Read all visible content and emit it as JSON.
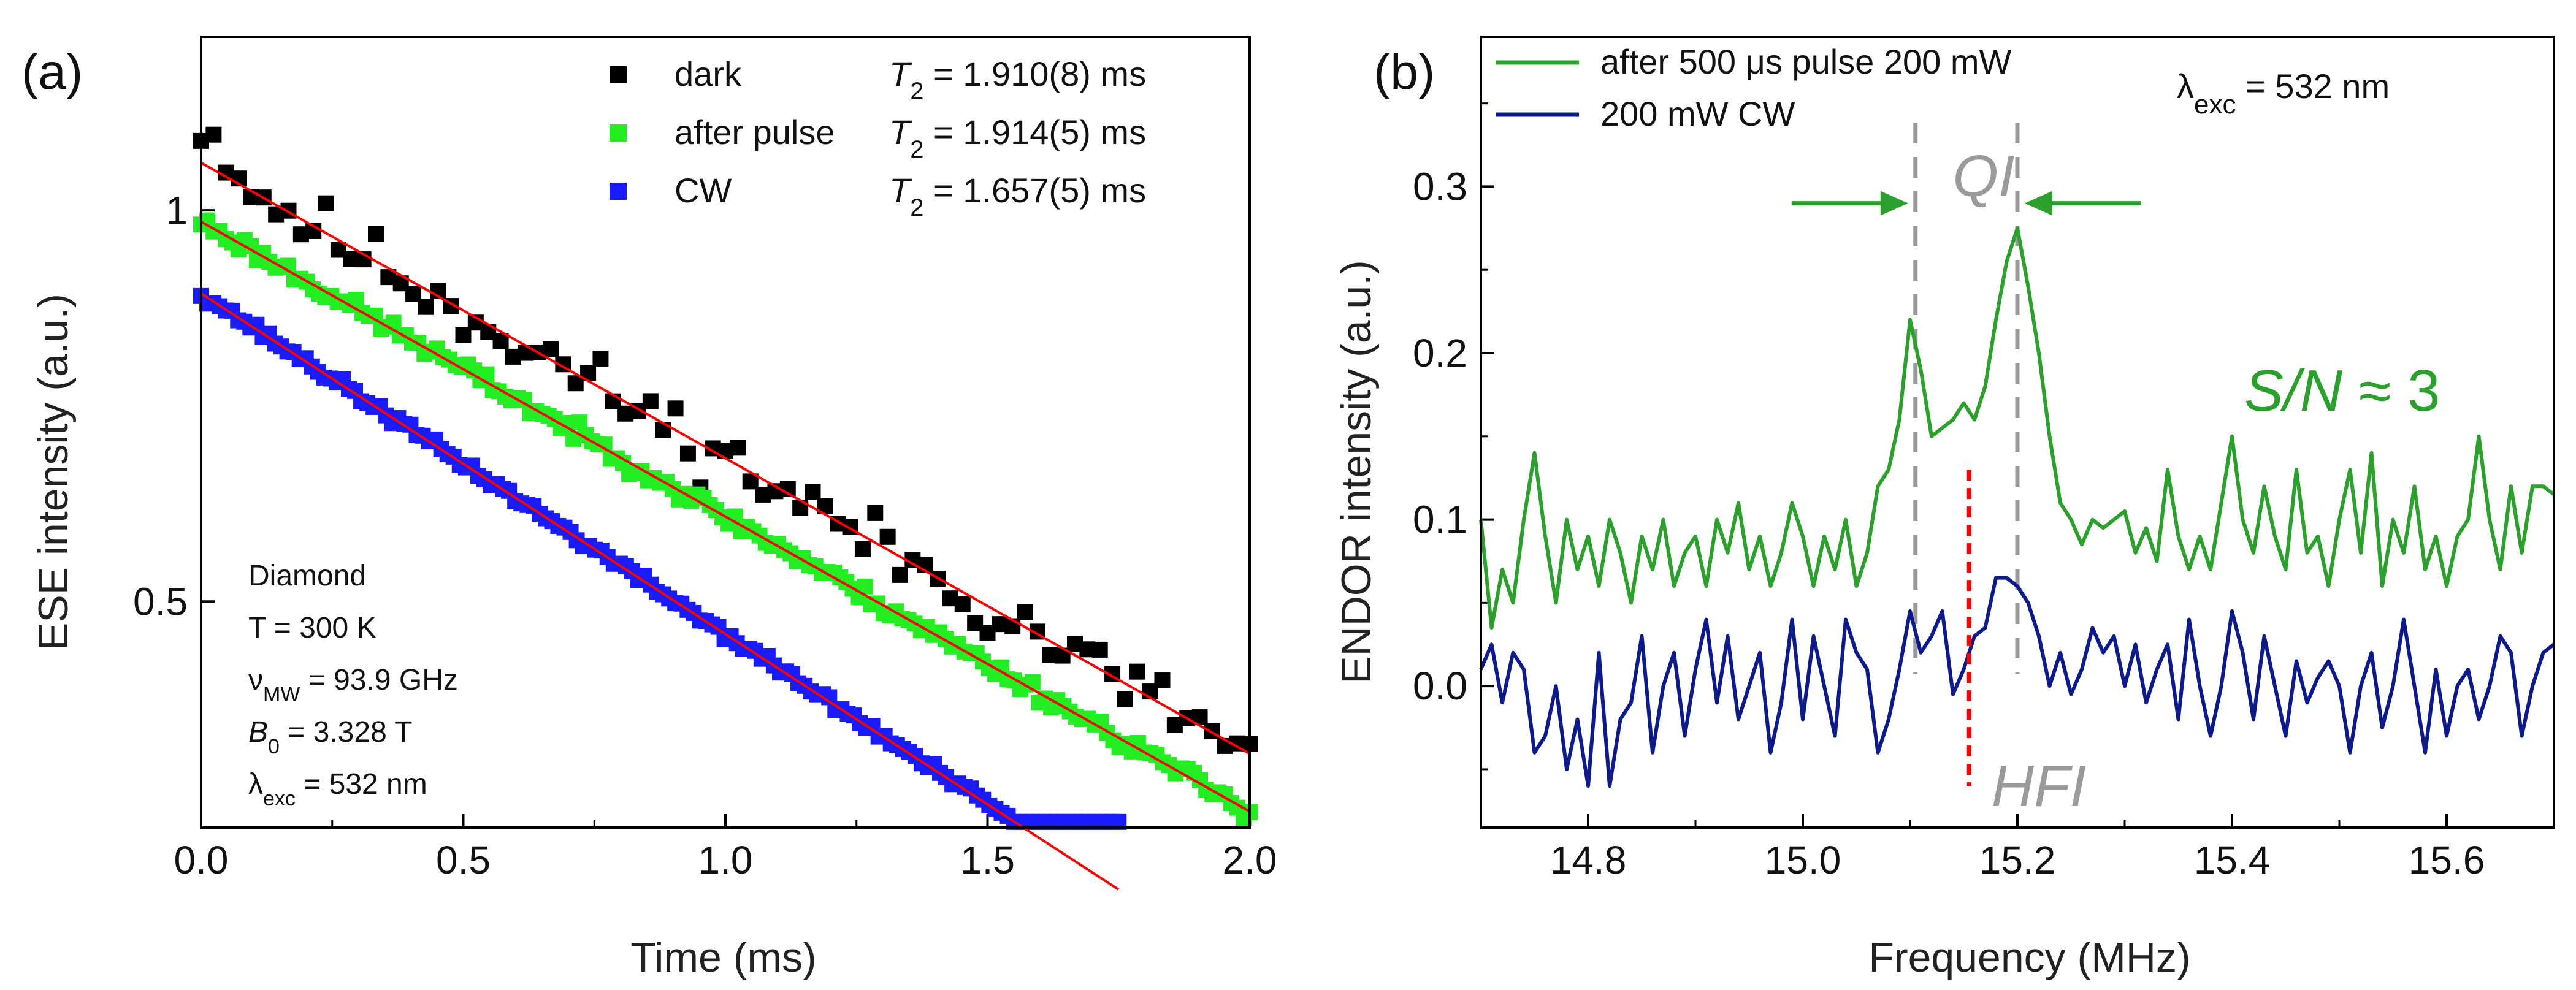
{
  "chart_data": [
    {
      "panel": "(a)",
      "type": "scatter",
      "xlabel": "Time (ms)",
      "ylabel": "ESE intensity (a.u.)",
      "xlim": [
        0,
        2.0
      ],
      "ylim": [
        0.335,
        1.36
      ],
      "yscale": "log",
      "xticks": [
        "0.0",
        "0.5",
        "1.0",
        "1.5",
        "2.0"
      ],
      "yticks": [
        {
          "v": 0.5,
          "label": "0.5"
        },
        {
          "v": 1.0,
          "label": "1"
        }
      ],
      "series": [
        {
          "name": "dark",
          "t2": "T₂ = 1.910(8) ms",
          "t2_prefix": "T",
          "t2_sub": "2",
          "t2_rest": " = 1.910(8) ms",
          "color": "#000000",
          "A": 1.088,
          "T2": 1.91,
          "tmax": 2.0,
          "noise": 0.045,
          "n": 85,
          "seed": 11
        },
        {
          "name": "after pulse",
          "t2": "T₂ = 1.914(5) ms",
          "t2_prefix": "T",
          "t2_sub": "2",
          "t2_rest": " = 1.914(5) ms",
          "color": "#22ee22",
          "A": 0.98,
          "T2": 1.914,
          "tmax": 2.0,
          "noise": 0.013,
          "n": 170,
          "seed": 23
        },
        {
          "name": "CW",
          "t2": "T₂ = 1.657(5) ms",
          "t2_prefix": "T",
          "t2_sub": "2",
          "t2_rest": " = 1.657(5) ms",
          "color": "#1a1aff",
          "A": 0.863,
          "T2": 1.657,
          "tmax": 1.75,
          "noise": 0.008,
          "n": 150,
          "seed": 37
        }
      ],
      "fit_color": "#ff0000",
      "annotations": [
        "Diamond",
        "T = 300 K",
        "ν_MW = 93.9 GHz",
        "B₀ = 3.328 T",
        "λ_exc = 532 nm"
      ],
      "anno_parts": [
        {
          "main": "Diamond",
          "sub": "",
          "rest": ""
        },
        {
          "main": "T = 300 K",
          "sub": "",
          "rest": ""
        },
        {
          "main": "ν",
          "sub": "MW",
          "rest": " = 93.9 GHz"
        },
        {
          "main": "B",
          "sub": "0",
          "rest": " = 3.328 T",
          "italic_main": true
        },
        {
          "main": "λ",
          "sub": "exc",
          "rest": " = 532 nm"
        }
      ]
    },
    {
      "panel": "(b)",
      "type": "line",
      "xlabel": "Frequency (MHz)",
      "ylabel": "ENDOR intensity (a.u.)",
      "xlim": [
        14.7,
        15.7
      ],
      "ylim": [
        -0.085,
        0.39
      ],
      "xticks": [
        "14.8",
        "15.0",
        "15.2",
        "15.4",
        "15.6"
      ],
      "yticks": [
        "0.0",
        "0.1",
        "0.2",
        "0.3"
      ],
      "series": [
        {
          "name": "after 500 μs pulse 200 mW",
          "color": "#2ca02c",
          "x": [
            14.7,
            14.71,
            14.72,
            14.73,
            14.74,
            14.75,
            14.76,
            14.77,
            14.78,
            14.79,
            14.8,
            14.81,
            14.82,
            14.83,
            14.84,
            14.85,
            14.86,
            14.87,
            14.88,
            14.89,
            14.9,
            14.91,
            14.92,
            14.93,
            14.94,
            14.95,
            14.96,
            14.97,
            14.98,
            14.99,
            15.0,
            15.01,
            15.02,
            15.03,
            15.04,
            15.05,
            15.06,
            15.07,
            15.08,
            15.09,
            15.1,
            15.11,
            15.12,
            15.13,
            15.14,
            15.15,
            15.16,
            15.17,
            15.18,
            15.19,
            15.2,
            15.21,
            15.22,
            15.23,
            15.24,
            15.25,
            15.26,
            15.27,
            15.28,
            15.29,
            15.3,
            15.31,
            15.32,
            15.33,
            15.34,
            15.35,
            15.36,
            15.37,
            15.38,
            15.39,
            15.4,
            15.41,
            15.42,
            15.43,
            15.44,
            15.45,
            15.46,
            15.47,
            15.48,
            15.49,
            15.5,
            15.51,
            15.52,
            15.53,
            15.54,
            15.55,
            15.56,
            15.57,
            15.58,
            15.59,
            15.6,
            15.61,
            15.62,
            15.63,
            15.64,
            15.65,
            15.66,
            15.67,
            15.68,
            15.69,
            15.7
          ],
          "y": [
            0.1,
            0.035,
            0.07,
            0.05,
            0.1,
            0.14,
            0.09,
            0.05,
            0.1,
            0.07,
            0.09,
            0.06,
            0.1,
            0.08,
            0.05,
            0.09,
            0.07,
            0.1,
            0.06,
            0.08,
            0.09,
            0.06,
            0.1,
            0.08,
            0.11,
            0.07,
            0.09,
            0.06,
            0.08,
            0.11,
            0.09,
            0.06,
            0.09,
            0.07,
            0.1,
            0.06,
            0.08,
            0.12,
            0.13,
            0.16,
            0.22,
            0.19,
            0.15,
            0.155,
            0.16,
            0.17,
            0.16,
            0.18,
            0.22,
            0.255,
            0.275,
            0.24,
            0.2,
            0.15,
            0.11,
            0.1,
            0.085,
            0.1,
            0.095,
            0.1,
            0.105,
            0.08,
            0.095,
            0.075,
            0.13,
            0.09,
            0.07,
            0.09,
            0.07,
            0.11,
            0.15,
            0.1,
            0.08,
            0.12,
            0.09,
            0.07,
            0.13,
            0.08,
            0.09,
            0.06,
            0.1,
            0.13,
            0.08,
            0.14,
            0.06,
            0.1,
            0.08,
            0.12,
            0.07,
            0.09,
            0.06,
            0.09,
            0.1,
            0.15,
            0.1,
            0.07,
            0.12,
            0.08,
            0.12,
            0.12,
            0.115
          ]
        },
        {
          "name": "200 mW CW",
          "color": "#0d1a8c",
          "x": [
            14.7,
            14.71,
            14.72,
            14.73,
            14.74,
            14.75,
            14.76,
            14.77,
            14.78,
            14.79,
            14.8,
            14.81,
            14.82,
            14.83,
            14.84,
            14.85,
            14.86,
            14.87,
            14.88,
            14.89,
            14.9,
            14.91,
            14.92,
            14.93,
            14.94,
            14.95,
            14.96,
            14.97,
            14.98,
            14.99,
            15.0,
            15.01,
            15.02,
            15.03,
            15.04,
            15.05,
            15.06,
            15.07,
            15.08,
            15.09,
            15.1,
            15.11,
            15.12,
            15.13,
            15.14,
            15.15,
            15.16,
            15.17,
            15.18,
            15.19,
            15.2,
            15.21,
            15.22,
            15.23,
            15.24,
            15.25,
            15.26,
            15.27,
            15.28,
            15.29,
            15.3,
            15.31,
            15.32,
            15.33,
            15.34,
            15.35,
            15.36,
            15.37,
            15.38,
            15.39,
            15.4,
            15.41,
            15.42,
            15.43,
            15.44,
            15.45,
            15.46,
            15.47,
            15.48,
            15.49,
            15.5,
            15.51,
            15.52,
            15.53,
            15.54,
            15.55,
            15.56,
            15.57,
            15.58,
            15.59,
            15.6,
            15.61,
            15.62,
            15.63,
            15.64,
            15.65,
            15.66,
            15.67,
            15.68,
            15.69,
            15.7
          ],
          "y": [
            0.01,
            0.025,
            -0.01,
            0.02,
            0.01,
            -0.04,
            -0.03,
            0.0,
            -0.05,
            -0.02,
            -0.06,
            0.02,
            -0.06,
            -0.02,
            -0.01,
            0.03,
            -0.04,
            0.0,
            0.02,
            -0.03,
            0.01,
            0.04,
            -0.01,
            0.03,
            -0.02,
            0.0,
            0.02,
            -0.04,
            -0.01,
            0.04,
            -0.02,
            0.03,
            0.0,
            -0.03,
            0.04,
            0.02,
            0.01,
            -0.04,
            -0.02,
            0.01,
            0.045,
            0.02,
            0.03,
            0.045,
            -0.005,
            0.01,
            0.03,
            0.035,
            0.065,
            0.065,
            0.06,
            0.05,
            0.03,
            0.0,
            0.02,
            -0.005,
            0.01,
            0.035,
            0.02,
            0.03,
            0.0,
            0.025,
            -0.01,
            0.01,
            0.025,
            -0.02,
            0.04,
            0.0,
            -0.03,
            0.0,
            0.045,
            0.02,
            -0.02,
            0.03,
            0.0,
            -0.03,
            0.015,
            -0.01,
            0.005,
            0.015,
            0.0,
            -0.04,
            0.0,
            0.02,
            -0.025,
            0.0,
            0.04,
            0.0,
            -0.04,
            0.01,
            -0.03,
            0.0,
            0.01,
            -0.02,
            0.0,
            0.03,
            0.02,
            -0.03,
            0.0,
            0.02,
            0.025
          ]
        }
      ],
      "annotations": {
        "top_right": "λ_exc = 532 nm",
        "top_right_main": "λ",
        "top_right_sub": "exc",
        "top_right_rest": " = 532 nm",
        "qi": "QI",
        "hfi": "HFI",
        "sn": "S/N ≈ 3",
        "sn_main": "S/N",
        "sn_rest": " ≈ 3",
        "qi_lines_mhz": [
          15.105,
          15.2
        ],
        "hfi_line_mhz": 15.155,
        "qi_color": "#9a9a9a",
        "hfi_color": "#ff0000",
        "arrow_color": "#2ca02c"
      }
    }
  ]
}
